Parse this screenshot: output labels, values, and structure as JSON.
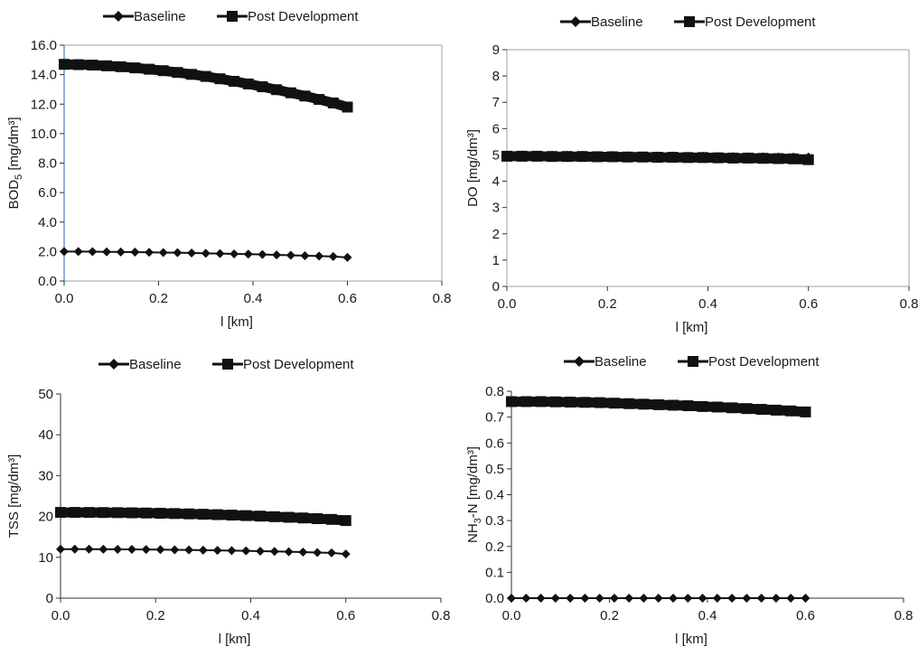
{
  "chart_data": [
    {
      "type": "line",
      "xlabel": "l [km]",
      "ylabel": "BOD",
      "ylabel_sub": "5",
      "ylabel_unit": " [mg/dm³]",
      "xlim": [
        0,
        0.8
      ],
      "ylim": [
        0,
        16
      ],
      "xticks": [
        "0.0",
        "0.2",
        "0.4",
        "0.6",
        "0.8"
      ],
      "yticks": [
        "0.0",
        "2.0",
        "4.0",
        "6.0",
        "8.0",
        "10.0",
        "12.0",
        "14.0",
        "16.0"
      ],
      "legend_position": "top",
      "frame": "box",
      "x": [
        0,
        0.03,
        0.06,
        0.09,
        0.12,
        0.15,
        0.18,
        0.21,
        0.24,
        0.27,
        0.3,
        0.33,
        0.36,
        0.39,
        0.42,
        0.45,
        0.48,
        0.51,
        0.54,
        0.57,
        0.6
      ],
      "series": [
        {
          "name": "Baseline",
          "marker": "diamond",
          "values": [
            2.0,
            2.0,
            1.99,
            1.98,
            1.97,
            1.96,
            1.95,
            1.93,
            1.92,
            1.9,
            1.88,
            1.86,
            1.84,
            1.82,
            1.8,
            1.77,
            1.75,
            1.72,
            1.69,
            1.66,
            1.6
          ]
        },
        {
          "name": "Post Development",
          "marker": "square",
          "values": [
            14.7,
            14.68,
            14.65,
            14.6,
            14.54,
            14.46,
            14.37,
            14.27,
            14.15,
            14.02,
            13.88,
            13.72,
            13.55,
            13.37,
            13.18,
            12.98,
            12.77,
            12.55,
            12.32,
            12.08,
            11.8
          ]
        }
      ]
    },
    {
      "type": "line",
      "xlabel": "l [km]",
      "ylabel": "DO [mg/dm³]",
      "xlim": [
        0,
        0.8
      ],
      "ylim": [
        0,
        9
      ],
      "xticks": [
        "0.0",
        "0.2",
        "0.4",
        "0.6",
        "0.8"
      ],
      "yticks": [
        "0",
        "1",
        "2",
        "3",
        "4",
        "5",
        "6",
        "7",
        "8",
        "9"
      ],
      "legend_position": "top",
      "frame": "box",
      "x": [
        0,
        0.03,
        0.06,
        0.09,
        0.12,
        0.15,
        0.18,
        0.21,
        0.24,
        0.27,
        0.3,
        0.33,
        0.36,
        0.39,
        0.42,
        0.45,
        0.48,
        0.51,
        0.54,
        0.57,
        0.6
      ],
      "series": [
        {
          "name": "Baseline",
          "marker": "diamond",
          "values": [
            5.0,
            5.0,
            4.99,
            4.99,
            4.99,
            4.98,
            4.98,
            4.98,
            4.97,
            4.97,
            4.96,
            4.96,
            4.95,
            4.95,
            4.94,
            4.94,
            4.93,
            4.93,
            4.92,
            4.92,
            4.92
          ]
        },
        {
          "name": "Post Development",
          "marker": "square",
          "values": [
            4.95,
            4.95,
            4.95,
            4.94,
            4.94,
            4.94,
            4.93,
            4.93,
            4.92,
            4.92,
            4.91,
            4.91,
            4.9,
            4.9,
            4.89,
            4.88,
            4.88,
            4.87,
            4.86,
            4.85,
            4.82
          ]
        }
      ]
    },
    {
      "type": "line",
      "xlabel": "l [km]",
      "ylabel": "TSS [mg/dm³]",
      "xlim": [
        0,
        0.8
      ],
      "ylim": [
        0,
        50
      ],
      "xticks": [
        "0.0",
        "0.2",
        "0.4",
        "0.6",
        "0.8"
      ],
      "yticks": [
        "0",
        "10",
        "20",
        "30",
        "40",
        "50"
      ],
      "legend_position": "top",
      "frame": "axes",
      "x": [
        0,
        0.03,
        0.06,
        0.09,
        0.12,
        0.15,
        0.18,
        0.21,
        0.24,
        0.27,
        0.3,
        0.33,
        0.36,
        0.39,
        0.42,
        0.45,
        0.48,
        0.51,
        0.54,
        0.57,
        0.6
      ],
      "series": [
        {
          "name": "Baseline",
          "marker": "diamond",
          "values": [
            12.0,
            12.0,
            11.99,
            11.98,
            11.96,
            11.94,
            11.91,
            11.88,
            11.84,
            11.8,
            11.75,
            11.7,
            11.64,
            11.58,
            11.51,
            11.44,
            11.36,
            11.27,
            11.18,
            11.08,
            10.8
          ]
        },
        {
          "name": "Post Development",
          "marker": "square",
          "values": [
            21.0,
            21.0,
            20.99,
            20.97,
            20.94,
            20.9,
            20.85,
            20.79,
            20.72,
            20.64,
            20.55,
            20.45,
            20.34,
            20.22,
            20.09,
            19.95,
            19.8,
            19.64,
            19.47,
            19.29,
            19.0
          ]
        }
      ]
    },
    {
      "type": "line",
      "xlabel": "l [km]",
      "ylabel": "NH",
      "ylabel_sub": "3",
      "ylabel_unit": "-N [mg/dm³]",
      "xlim": [
        0,
        0.8
      ],
      "ylim": [
        0,
        0.8
      ],
      "xticks": [
        "0.0",
        "0.2",
        "0.4",
        "0.6",
        "0.8"
      ],
      "yticks": [
        "0.0",
        "0.1",
        "0.2",
        "0.3",
        "0.4",
        "0.5",
        "0.6",
        "0.7",
        "0.8"
      ],
      "legend_position": "top",
      "frame": "axes",
      "x": [
        0,
        0.03,
        0.06,
        0.09,
        0.12,
        0.15,
        0.18,
        0.21,
        0.24,
        0.27,
        0.3,
        0.33,
        0.36,
        0.39,
        0.42,
        0.45,
        0.48,
        0.51,
        0.54,
        0.57,
        0.6
      ],
      "series": [
        {
          "name": "Baseline",
          "marker": "diamond",
          "values": [
            0.0,
            0.0,
            0.0,
            0.0,
            0.0,
            0.0,
            0.0,
            0.0,
            0.0,
            0.0,
            0.0,
            0.0,
            0.0,
            0.0,
            0.0,
            0.0,
            0.0,
            0.0,
            0.0,
            0.0,
            0.0
          ]
        },
        {
          "name": "Post Development",
          "marker": "square",
          "values": [
            0.76,
            0.76,
            0.76,
            0.759,
            0.758,
            0.757,
            0.756,
            0.754,
            0.752,
            0.75,
            0.748,
            0.746,
            0.744,
            0.741,
            0.739,
            0.736,
            0.733,
            0.73,
            0.727,
            0.724,
            0.72
          ]
        }
      ]
    }
  ]
}
